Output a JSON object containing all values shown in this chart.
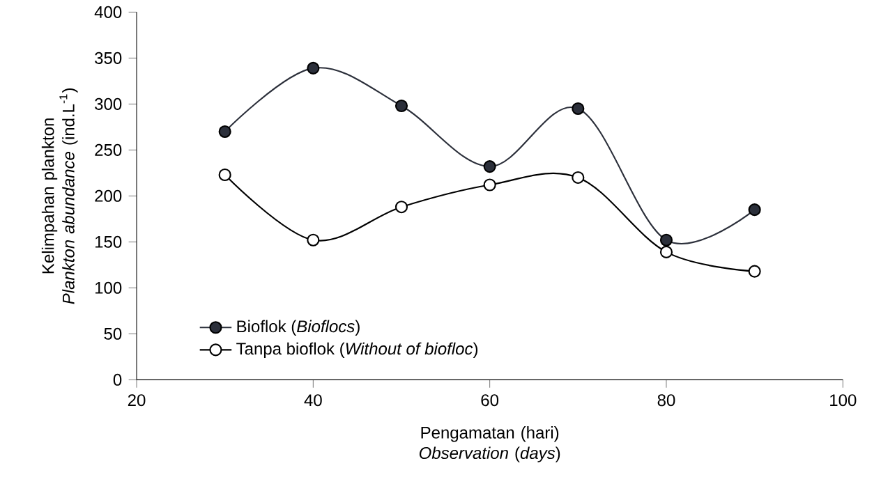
{
  "chart_data": {
    "type": "line",
    "xlabel": "Pengamatan (hari) *Observation* (*days*)",
    "ylabel": "Kelimpahan plankton *Plankton abundance* (ind.L$^{-1}$)",
    "x": [
      30,
      40,
      50,
      60,
      70,
      80,
      90
    ],
    "series": [
      {
        "name": "Bioflok (*Bioflocs*)",
        "color": "#2b2f3a",
        "values": [
          270,
          339,
          298,
          232,
          295,
          152,
          185
        ]
      },
      {
        "name": "Tanpa bioflok (*Without of biofloc*)",
        "color": "#000000",
        "values": [
          223,
          152,
          188,
          212,
          220,
          139,
          118
        ]
      }
    ],
    "xlim": [
      20,
      100
    ],
    "xticks": [
      20,
      40,
      60,
      80,
      100
    ],
    "ylim": [
      0,
      400
    ],
    "yticks": [
      0,
      50,
      100,
      150,
      200,
      250,
      300,
      350,
      400
    ],
    "grid": false,
    "legend": "bottom left",
    "marker": "circle",
    "line_style": "solid"
  }
}
